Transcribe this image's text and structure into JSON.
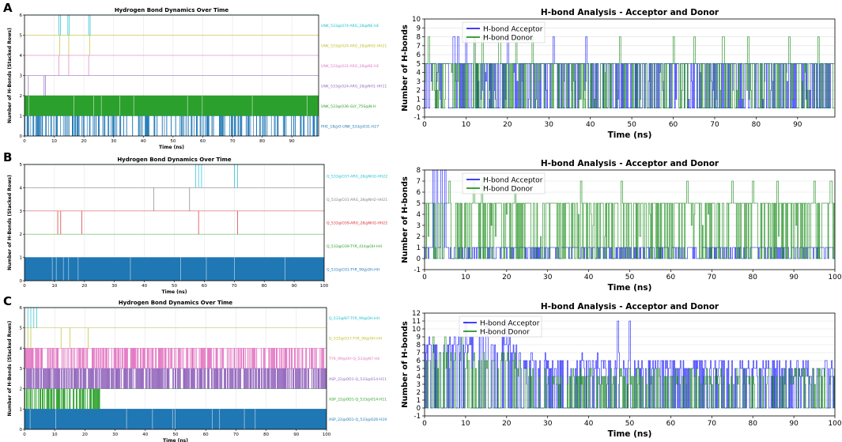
{
  "panel_labels": [
    "A",
    "B",
    "C"
  ],
  "chart_data": [
    {
      "panel": "A",
      "type": "stacked-event-raster",
      "title": "Hydrogen Bond Dynamics Over Time",
      "xlabel": "Time (ns)",
      "ylabel": "Number of H-Bonds (Stacked Rows)",
      "xlim": [
        0,
        99
      ],
      "ylim": [
        0,
        6
      ],
      "xticks": [
        0,
        10,
        20,
        30,
        40,
        50,
        60,
        70,
        80,
        90
      ],
      "yticks": [
        0,
        1,
        2,
        3,
        4,
        5,
        6
      ],
      "rows": [
        {
          "name": "PHE_18@O-UNK_533@O31-H27",
          "color": "#1f77b4",
          "occupancy": 0.3,
          "events": [
            1,
            2,
            4,
            5,
            6,
            7,
            8,
            9,
            11,
            12,
            13,
            15,
            16,
            17,
            18,
            20,
            21,
            22,
            27,
            28,
            29,
            30,
            31,
            47,
            55,
            57,
            59,
            60,
            62,
            63,
            66,
            69,
            70,
            71,
            72,
            76,
            77,
            78,
            79,
            80,
            81,
            83,
            84,
            85,
            87,
            88,
            91,
            96
          ]
        },
        {
          "name": "UNK_533@O36-GLY_75S@N-H",
          "color": "#2ca02c",
          "occupancy": 1.0,
          "events": []
        },
        {
          "name": "UNK_533@O24-ARG_28@NH1-HH11",
          "color": "#9467bd",
          "occupancy": 0.0,
          "events": [
            1.2,
            6.5,
            7.0
          ]
        },
        {
          "name": "UNK_533@O31-ARG_28@NE-HE",
          "color": "#e377c2",
          "occupancy": 0.0,
          "events": [
            11.5,
            14.8,
            21.5
          ]
        },
        {
          "name": "UNK_533@O24-ARG_28@NH2-HH21",
          "color": "#bcbd22",
          "occupancy": 0.0,
          "events": [
            11.8,
            14.8,
            21.8
          ]
        },
        {
          "name": "UNK_533@O74-ARG_28@NE-HE",
          "color": "#17becf",
          "occupancy": 0.0,
          "events": [
            11.5,
            12.0,
            14.5,
            15.0,
            21.5,
            22.0
          ]
        }
      ]
    },
    {
      "panel": "A",
      "type": "line",
      "title": "H-bond Analysis - Acceptor and Donor",
      "xlabel": "Time (ns)",
      "ylabel": "Number of H-bonds",
      "xlim": [
        0,
        99
      ],
      "ylim": [
        -1,
        10
      ],
      "xticks": [
        0,
        10,
        20,
        30,
        40,
        50,
        60,
        70,
        80,
        90
      ],
      "yticks": [
        -1,
        0,
        1,
        2,
        3,
        4,
        5,
        6,
        7,
        8,
        9,
        10
      ],
      "legend_position": "top-left",
      "series": [
        {
          "name": "H-bond Acceptor",
          "color": "#0000ff",
          "base_range": [
            0,
            5
          ],
          "peak": 8,
          "peak_times": [
            7,
            8,
            10,
            12,
            20,
            31,
            39
          ]
        },
        {
          "name": "H-bond Donor",
          "color": "#008000",
          "base_range": [
            0,
            5
          ],
          "peak": 8,
          "peak_times": [
            1,
            12,
            14,
            18,
            22,
            26,
            47,
            60,
            65,
            72,
            78,
            88,
            95
          ]
        }
      ]
    },
    {
      "panel": "B",
      "type": "stacked-event-raster",
      "title": "Hydrogen Bond Dynamics Over Time",
      "xlabel": "Time (ns)",
      "ylabel": "Number of H-Bonds (Stacked Rows)",
      "xlim": [
        0,
        100
      ],
      "ylim": [
        0,
        5
      ],
      "xticks": [
        0,
        10,
        20,
        30,
        40,
        50,
        60,
        70,
        80,
        90,
        100
      ],
      "yticks": [
        0,
        1,
        2,
        3,
        4,
        5
      ],
      "rows": [
        {
          "name": "Q_533@O31-TYR_99@OH-HH",
          "color": "#1f77b4",
          "occupancy": 1.0,
          "events": []
        },
        {
          "name": "Q_533@O39-TYR_414@OH-HH",
          "color": "#2ca02c",
          "occupancy": 0.0,
          "events": []
        },
        {
          "name": "Q_533@O39-ARG_28@NH2-HH22",
          "color": "#d62728",
          "occupancy": 0.0,
          "events": [
            11,
            12,
            19,
            58,
            71
          ]
        },
        {
          "name": "Q_533@O31-ARG_28@NH2-HH21",
          "color": "#7f7f7f",
          "occupancy": 0.0,
          "events": [
            43,
            55
          ]
        },
        {
          "name": "Q_533@O37-ARG_28@NH2-HH22",
          "color": "#17becf",
          "occupancy": 0.0,
          "events": [
            57,
            58,
            59,
            70,
            71
          ]
        }
      ]
    },
    {
      "panel": "B",
      "type": "line",
      "title": "H-bond Analysis - Acceptor and Donor",
      "xlabel": "Time (ns)",
      "ylabel": "Number of H-bonds",
      "xlim": [
        0,
        100
      ],
      "ylim": [
        -1,
        8
      ],
      "xticks": [
        0,
        10,
        20,
        30,
        40,
        50,
        60,
        70,
        80,
        90,
        100
      ],
      "yticks": [
        -1,
        0,
        1,
        2,
        3,
        4,
        5,
        6,
        7,
        8
      ],
      "legend_position": "top-left",
      "series": [
        {
          "name": "H-bond Acceptor",
          "color": "#0000ff",
          "base_range": [
            0,
            1
          ],
          "peak": 8,
          "peak_times": [
            2,
            3,
            4,
            5
          ]
        },
        {
          "name": "H-bond Donor",
          "color": "#008000",
          "base_range": [
            0,
            5
          ],
          "peak": 7,
          "peak_times": [
            6,
            12,
            14,
            22,
            38,
            48,
            64,
            75,
            80,
            86,
            95,
            99
          ]
        }
      ]
    },
    {
      "panel": "C",
      "type": "stacked-event-raster",
      "title": "Hydrogen Bond Dynamics Over Time",
      "xlabel": "Time (ns)",
      "ylabel": "Number of H-Bonds (Stacked Rows)",
      "xlim": [
        0,
        100
      ],
      "ylim": [
        0,
        6
      ],
      "xticks": [
        0,
        10,
        20,
        30,
        40,
        50,
        60,
        70,
        80,
        90,
        100
      ],
      "yticks": [
        0,
        1,
        2,
        3,
        4,
        5,
        6
      ],
      "rows": [
        {
          "name": "ASP_22@OD1-Q_533@O26-H19",
          "color": "#1f77b4",
          "occupancy": 1.0,
          "events": []
        },
        {
          "name": "ASP_22@OD1-Q_533@O14-H11",
          "color": "#2ca02c",
          "occupancy": 0.7,
          "window": [
            0,
            25
          ],
          "events": []
        },
        {
          "name": "ASP_22@OD1-Q_533@O14-H11",
          "color": "#9467bd",
          "occupancy": 0.8,
          "window": [
            0,
            100
          ],
          "events": []
        },
        {
          "name": "TYR_99@OH-Q_533@N7-H4",
          "color": "#e377c2",
          "occupancy": 0.6,
          "window": [
            0,
            100
          ],
          "events": []
        },
        {
          "name": "Q_533@O17-TYR_99@OH-HH",
          "color": "#bcbd22",
          "occupancy": 0.0,
          "events": [
            1,
            2,
            12,
            15,
            21
          ]
        },
        {
          "name": "Q_533@N7-TYR_99@OH-HH",
          "color": "#17becf",
          "occupancy": 0.0,
          "events": [
            1,
            2,
            3,
            4
          ]
        }
      ]
    },
    {
      "panel": "C",
      "type": "line",
      "title": "H-bond Analysis - Acceptor and Donor",
      "xlabel": "Time (ns)",
      "ylabel": "Number of H-bonds",
      "xlim": [
        0,
        100
      ],
      "ylim": [
        -1,
        12
      ],
      "xticks": [
        0,
        10,
        20,
        30,
        40,
        50,
        60,
        70,
        80,
        90,
        100
      ],
      "yticks": [
        -1,
        0,
        1,
        2,
        3,
        4,
        5,
        6,
        7,
        8,
        9,
        10,
        11,
        12
      ],
      "legend_position": "top-center",
      "series": [
        {
          "name": "H-bond Acceptor",
          "color": "#0000ff",
          "trend": [
            [
              0,
              8
            ],
            [
              22,
              8
            ],
            [
              24,
              6
            ],
            [
              100,
              5
            ]
          ],
          "peak": 11,
          "peak_times": [
            10,
            15,
            20,
            47,
            50
          ]
        },
        {
          "name": "H-bond Donor",
          "color": "#008000",
          "trend": [
            [
              0,
              6
            ],
            [
              22,
              6
            ],
            [
              24,
              4
            ],
            [
              100,
              4
            ]
          ],
          "peak": 9,
          "peak_times": [
            2,
            5,
            9
          ]
        }
      ]
    }
  ]
}
